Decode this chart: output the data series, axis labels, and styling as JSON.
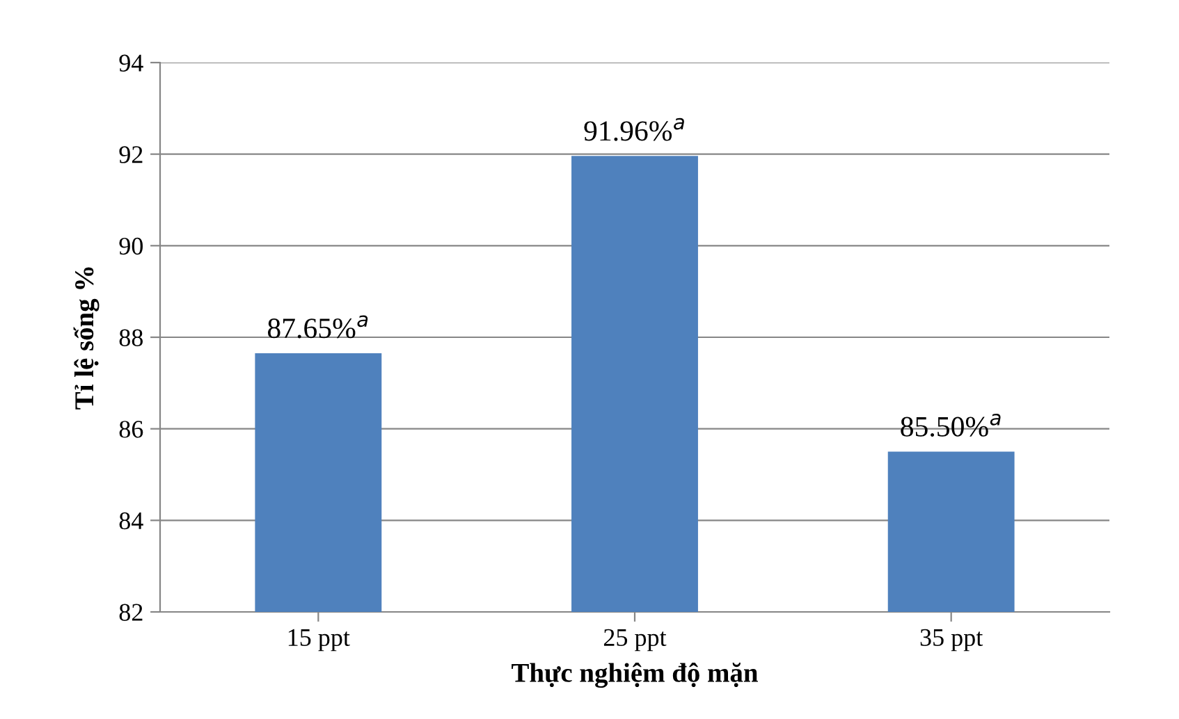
{
  "chart_data": {
    "type": "bar",
    "xlabel": "Thực nghiệm độ mặn",
    "ylabel": "Tỉ lệ sống %",
    "categories": [
      "15 ppt",
      "25 ppt",
      "35 ppt"
    ],
    "values": [
      87.65,
      91.96,
      85.5
    ],
    "value_labels": [
      "87.65%$^{a}$",
      "91.96%$^{a}$",
      "85.50%$^{a}$"
    ],
    "color": "#4f81bd",
    "ylim": [
      82,
      94
    ],
    "yticks": [
      82,
      84,
      86,
      88,
      90,
      92,
      94
    ],
    "grid": "y"
  }
}
